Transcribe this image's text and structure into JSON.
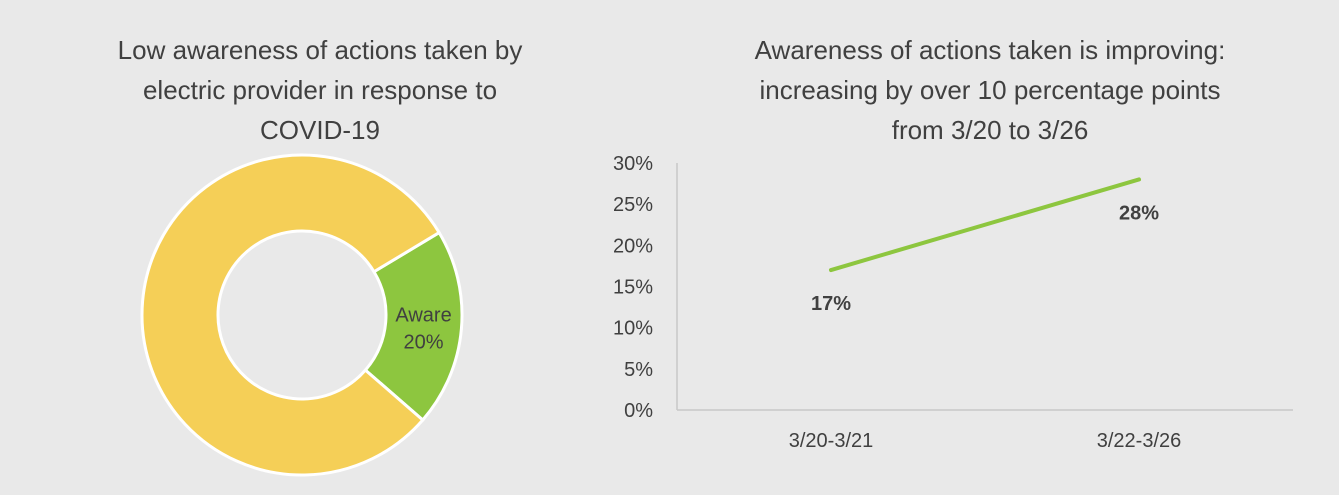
{
  "chart_data": [
    {
      "type": "pie",
      "title": "Low awareness of actions taken by\nelectric provider in response to\nCOVID-19",
      "slices": [
        {
          "label": "Aware",
          "value": 20,
          "display": "20%",
          "color": "#8dc63f"
        },
        {
          "label": "",
          "value": 80,
          "display": "",
          "color": "#f5cf57"
        }
      ],
      "donut": true
    },
    {
      "type": "line",
      "title": "Awareness of actions taken is improving:\nincreasing by over 10 percentage points\nfrom 3/20 to 3/26",
      "categories": [
        "3/20-3/21",
        "3/22-3/26"
      ],
      "series": [
        {
          "values": [
            17,
            28
          ],
          "labels": [
            "17%",
            "28%"
          ],
          "color": "#8dc63f"
        }
      ],
      "ylim": [
        0,
        30
      ],
      "yticks": [
        "0%",
        "5%",
        "10%",
        "15%",
        "20%",
        "25%",
        "30%"
      ],
      "grid": false
    }
  ]
}
